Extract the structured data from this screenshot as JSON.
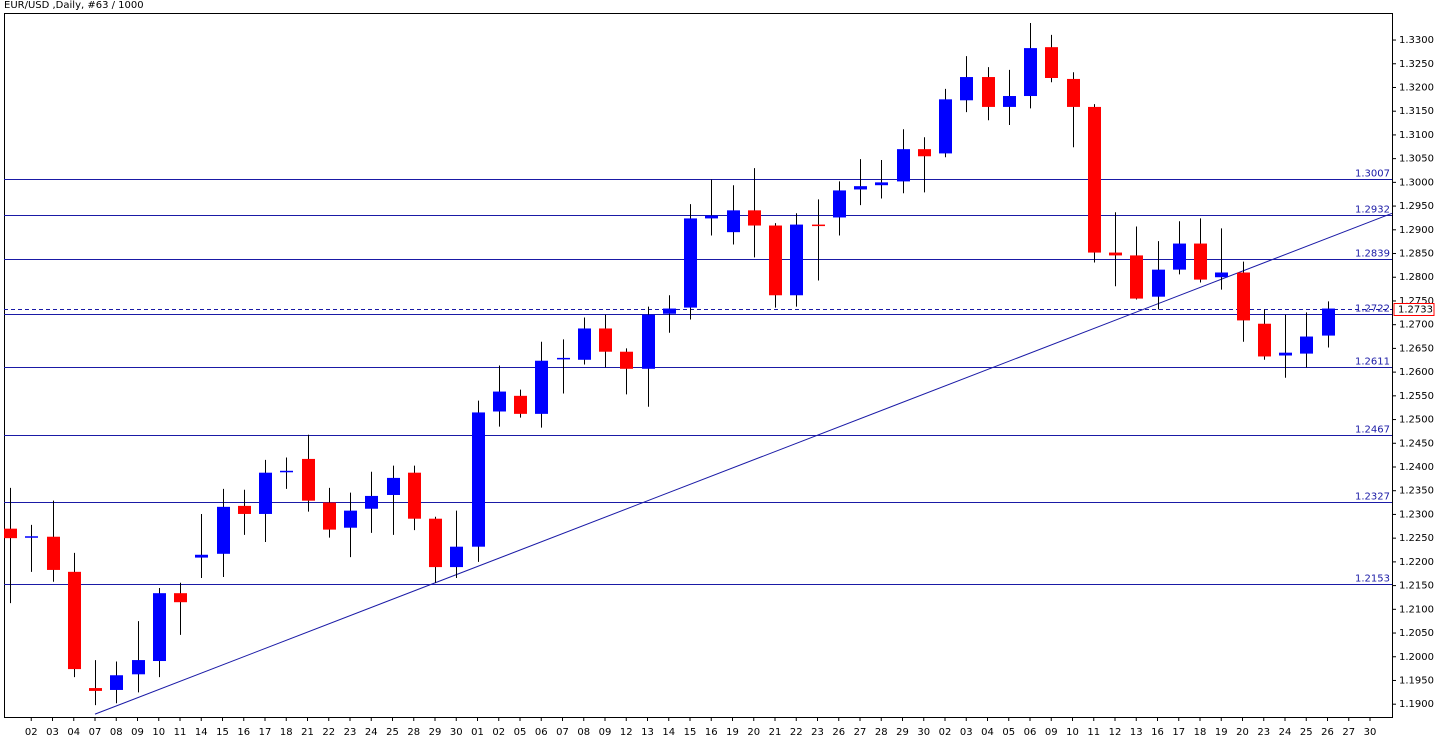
{
  "chart_data": {
    "type": "candlestick",
    "title": "EUR/USD ,Daily, #63 / 1000",
    "categories": [
      null,
      "02",
      "03",
      "04",
      "07",
      "08",
      "09",
      "10",
      "11",
      "14",
      "15",
      "16",
      "17",
      "18",
      "21",
      "22",
      "23",
      "24",
      "25",
      "28",
      "29",
      "30",
      "01",
      "02",
      "05",
      "06",
      "07",
      "08",
      "09",
      "12",
      "13",
      "14",
      "15",
      "16",
      "19",
      "20",
      "21",
      "22",
      "23",
      "26",
      "27",
      "28",
      "29",
      "30",
      "02",
      "03",
      "04",
      "05",
      "06",
      "09",
      "10",
      "11",
      "12",
      "13",
      "16",
      "17",
      "18",
      "19",
      "20",
      "23",
      "24",
      "25",
      "26",
      "27",
      "30"
    ],
    "open": [
      1.227,
      1.2252,
      1.2253,
      1.2179,
      1.1934,
      1.193,
      1.1963,
      1.1991,
      1.2134,
      1.2209,
      1.2217,
      1.2318,
      1.2301,
      1.239,
      1.2417,
      1.2325,
      1.2272,
      1.2312,
      1.2341,
      1.2388,
      1.2291,
      1.2189,
      1.2232,
      1.2517,
      1.255,
      1.2512,
      1.2628,
      1.2626,
      1.2692,
      1.2643,
      1.2607,
      1.2723,
      1.2736,
      1.2924,
      1.2895,
      1.2941,
      1.2909,
      1.2762,
      1.2911,
      1.2926,
      1.2985,
      1.2994,
      1.3002,
      1.307,
      1.3061,
      1.3173,
      1.3222,
      1.3159,
      1.3182,
      1.3285,
      1.3218,
      1.3159,
      1.2852,
      1.2846,
      1.2759,
      1.2816,
      1.2871,
      1.28,
      1.281,
      1.2702,
      1.2635,
      1.2639,
      1.2677,
      null,
      null
    ],
    "high": [
      1.2356,
      1.2278,
      1.2329,
      1.2219,
      1.1993,
      1.199,
      1.2075,
      1.2145,
      1.2156,
      1.2301,
      1.2354,
      1.2352,
      1.2415,
      1.242,
      1.2468,
      1.2356,
      1.2346,
      1.239,
      1.2403,
      1.2403,
      1.2295,
      1.2308,
      1.254,
      1.2614,
      1.2563,
      1.2664,
      1.2669,
      1.2715,
      1.2721,
      1.265,
      1.2738,
      1.2762,
      1.2954,
      1.3006,
      1.2994,
      1.303,
      1.2914,
      1.2935,
      1.2964,
      1.3002,
      1.3049,
      1.3047,
      1.3112,
      1.3095,
      1.3197,
      1.3266,
      1.3243,
      1.3237,
      1.3336,
      1.3311,
      1.3232,
      1.3165,
      1.2937,
      1.2907,
      1.2876,
      1.2918,
      1.2924,
      1.2903,
      1.2833,
      1.2732,
      1.2721,
      1.2726,
      1.2749,
      null,
      null
    ],
    "low": [
      1.2113,
      1.2179,
      1.2158,
      1.1957,
      1.1898,
      1.1902,
      1.1925,
      1.1957,
      1.2046,
      1.2166,
      1.2168,
      1.2257,
      1.2242,
      1.2354,
      1.2306,
      1.2251,
      1.221,
      1.2261,
      1.2257,
      1.2267,
      1.2156,
      1.2166,
      1.22,
      1.2485,
      1.2504,
      1.2483,
      1.2555,
      1.2616,
      1.261,
      1.2553,
      1.2527,
      1.2683,
      1.2711,
      1.2888,
      1.2869,
      1.2842,
      1.2736,
      1.2738,
      1.2793,
      1.2888,
      1.2952,
      1.2966,
      1.2977,
      1.2979,
      1.3053,
      1.3148,
      1.3131,
      1.3121,
      1.3156,
      1.3211,
      1.3074,
      1.2831,
      1.2781,
      1.2753,
      1.2732,
      1.2806,
      1.2789,
      1.2774,
      1.2664,
      1.2626,
      1.2588,
      1.261,
      1.2652,
      null,
      null
    ],
    "close": [
      1.225,
      1.2254,
      1.2183,
      1.1974,
      1.1928,
      1.1961,
      1.1993,
      1.2134,
      1.2115,
      1.2215,
      1.2316,
      1.2301,
      1.2388,
      1.2392,
      1.2329,
      1.2268,
      1.2308,
      1.2339,
      1.2377,
      1.2291,
      1.2189,
      1.2232,
      1.2515,
      1.2559,
      1.2512,
      1.2624,
      1.263,
      1.2692,
      1.2643,
      1.2607,
      1.2721,
      1.2734,
      1.2924,
      1.293,
      1.2941,
      1.2909,
      1.2762,
      1.2911,
      1.2909,
      1.2983,
      1.2992,
      1.3,
      1.307,
      1.3055,
      1.3175,
      1.3222,
      1.3159,
      1.3182,
      1.3283,
      1.322,
      1.3159,
      1.2852,
      1.2846,
      1.2755,
      1.2816,
      1.2871,
      1.2795,
      1.281,
      1.2709,
      1.2633,
      1.2641,
      1.2675,
      1.2734,
      null,
      null
    ],
    "up_color": "#0000ff",
    "down_color": "#ff0000",
    "levels": [
      1.3007,
      1.2932,
      1.2839,
      1.2722,
      1.2611,
      1.2467,
      1.2327,
      1.2153
    ],
    "level_color": "#1a1aa6",
    "current_price": 1.2733,
    "trendline": {
      "x": [
        4,
        58
      ],
      "y": [
        1.1879,
        1.2813
      ]
    },
    "ylim": [
      1.1873,
      1.3357
    ],
    "yticks": [
      {
        "value": 1.19,
        "label": "1.1900"
      },
      {
        "value": 1.195,
        "label": "1.1950"
      },
      {
        "value": 1.2,
        "label": "1.2000"
      },
      {
        "value": 1.205,
        "label": "1.2050"
      },
      {
        "value": 1.21,
        "label": "1.2100"
      },
      {
        "value": 1.215,
        "label": "1.2150"
      },
      {
        "value": 1.22,
        "label": "1.2200"
      },
      {
        "value": 1.225,
        "label": "1.2250"
      },
      {
        "value": 1.23,
        "label": "1.2300"
      },
      {
        "value": 1.235,
        "label": "1.2350"
      },
      {
        "value": 1.24,
        "label": "1.2400"
      },
      {
        "value": 1.245,
        "label": "1.2450"
      },
      {
        "value": 1.25,
        "label": "1.2500"
      },
      {
        "value": 1.255,
        "label": "1.2550"
      },
      {
        "value": 1.26,
        "label": "1.2600"
      },
      {
        "value": 1.265,
        "label": "1.2650"
      },
      {
        "value": 1.27,
        "label": "1.2700"
      },
      {
        "value": 1.275,
        "label": "1.2750"
      },
      {
        "value": 1.28,
        "label": "1.2800"
      },
      {
        "value": 1.285,
        "label": "1.2850"
      },
      {
        "value": 1.29,
        "label": "1.2900"
      },
      {
        "value": 1.295,
        "label": "1.2950"
      },
      {
        "value": 1.3,
        "label": "1.3000"
      },
      {
        "value": 1.305,
        "label": "1.3050"
      },
      {
        "value": 1.31,
        "label": "1.3100"
      },
      {
        "value": 1.315,
        "label": "1.3150"
      },
      {
        "value": 1.32,
        "label": "1.3200"
      },
      {
        "value": 1.325,
        "label": "1.3250"
      },
      {
        "value": 1.33,
        "label": "1.3300"
      }
    ]
  }
}
